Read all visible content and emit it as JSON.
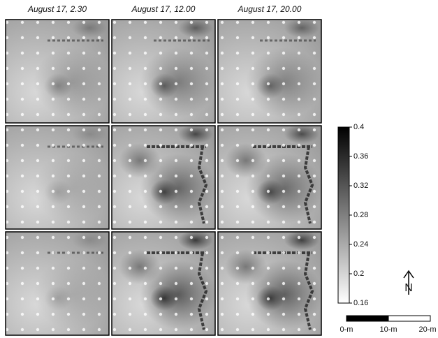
{
  "columns": [
    "August 17, 2.30",
    "August 17, 12.00",
    "August 17, 20.00"
  ],
  "colorbar": {
    "lim": [
      0.16,
      0.4
    ],
    "ticks": [
      0.4,
      0.36,
      0.32,
      0.28,
      0.24,
      0.2,
      0.16
    ]
  },
  "scale_bar": {
    "labels": [
      "0-m",
      "10-m",
      "20-m"
    ]
  },
  "north_label": "N"
}
